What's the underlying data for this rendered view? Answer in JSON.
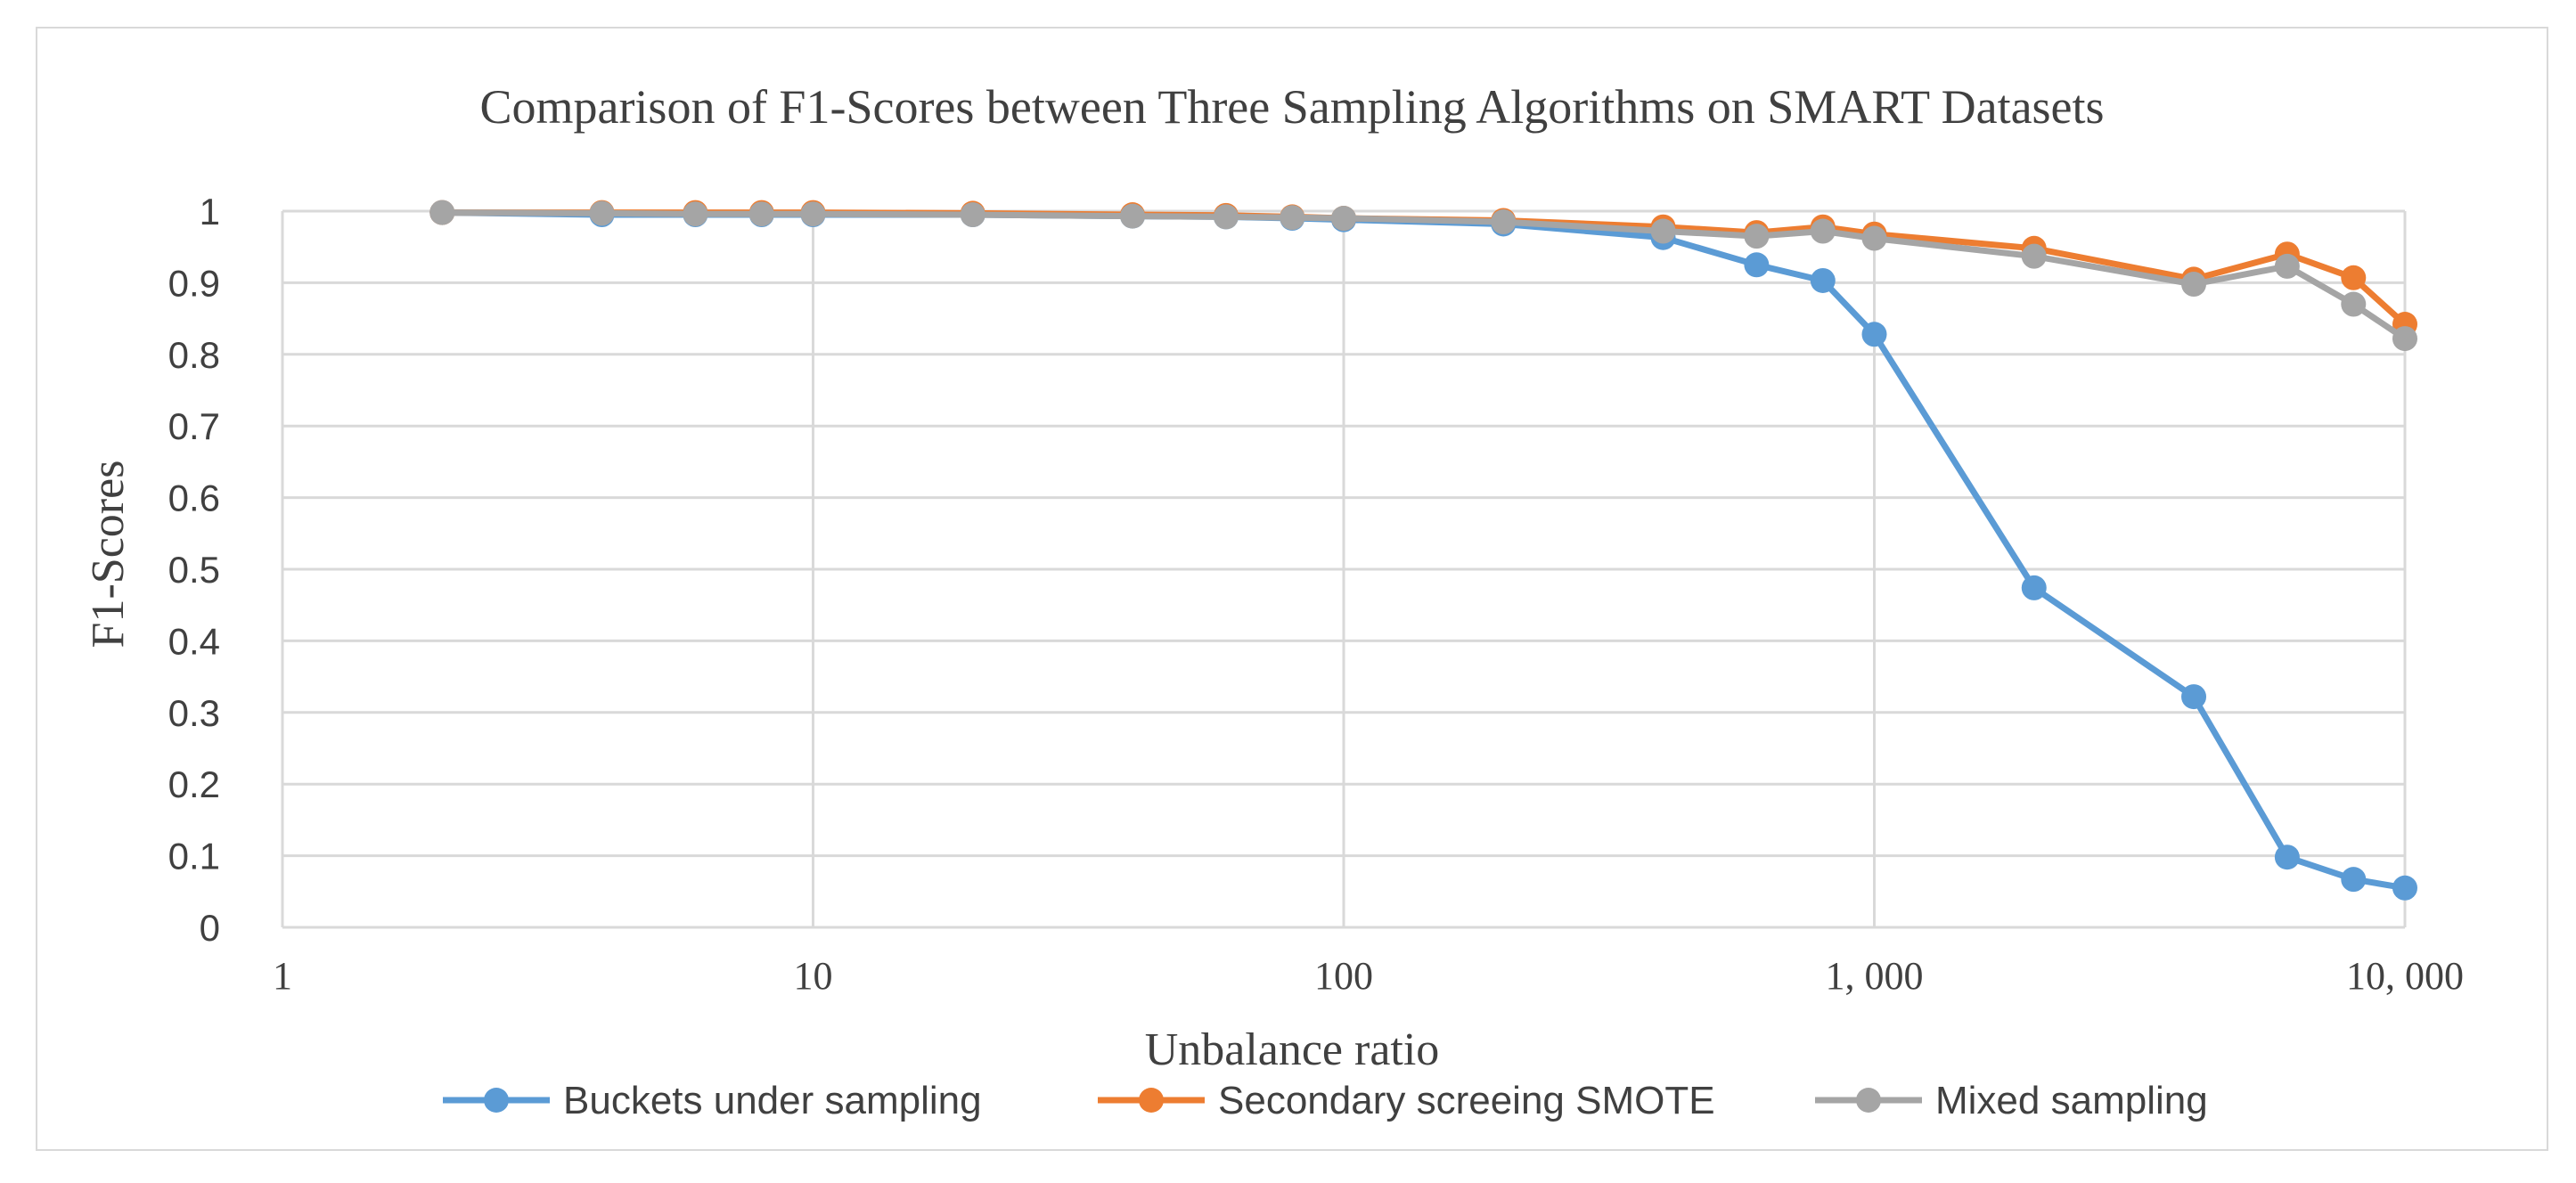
{
  "chart_data": {
    "type": "line",
    "title": "Comparison of F1-Scores between Three Sampling Algorithms on SMART Datasets",
    "xlabel": "Unbalance ratio",
    "ylabel": "F1-Scores",
    "x_scale": "log",
    "xlim": [
      1,
      10000
    ],
    "ylim": [
      0,
      1
    ],
    "grid": true,
    "legend_position": "bottom",
    "x_ticks": [
      1,
      10,
      100,
      1000,
      10000
    ],
    "x_tick_labels": [
      "1",
      "10",
      "100",
      "1, 000",
      "10, 000"
    ],
    "y_ticks": [
      0,
      0.1,
      0.2,
      0.3,
      0.4,
      0.5,
      0.6,
      0.7,
      0.8,
      0.9,
      1
    ],
    "y_tick_labels": [
      "0",
      "0.1",
      "0.2",
      "0.3",
      "0.4",
      "0.5",
      "0.6",
      "0.7",
      "0.8",
      "0.9",
      "1"
    ],
    "series": [
      {
        "name": "Buckets under sampling",
        "color": "#5b9bd5",
        "x": [
          2,
          4,
          6,
          8,
          10,
          20,
          40,
          60,
          80,
          100,
          200,
          400,
          600,
          800,
          1000,
          2000,
          4000,
          6000,
          8000,
          10000
        ],
        "y": [
          0.998,
          0.995,
          0.995,
          0.995,
          0.995,
          0.995,
          0.993,
          0.992,
          0.99,
          0.988,
          0.982,
          0.963,
          0.925,
          0.903,
          0.828,
          0.474,
          0.322,
          0.098,
          0.067,
          0.055
        ]
      },
      {
        "name": "Secondary screeing SMOTE",
        "color": "#ed7d31",
        "x": [
          2,
          4,
          6,
          8,
          10,
          20,
          40,
          60,
          80,
          100,
          200,
          400,
          600,
          800,
          1000,
          2000,
          4000,
          6000,
          8000,
          10000
        ],
        "y": [
          0.998,
          0.998,
          0.998,
          0.998,
          0.998,
          0.997,
          0.995,
          0.994,
          0.992,
          0.99,
          0.987,
          0.978,
          0.97,
          0.978,
          0.968,
          0.948,
          0.905,
          0.94,
          0.907,
          0.842
        ]
      },
      {
        "name": "Mixed sampling",
        "color": "#a5a5a5",
        "x": [
          2,
          4,
          6,
          8,
          10,
          20,
          40,
          60,
          80,
          100,
          200,
          400,
          600,
          800,
          1000,
          2000,
          4000,
          6000,
          8000,
          10000
        ],
        "y": [
          0.998,
          0.997,
          0.996,
          0.996,
          0.996,
          0.995,
          0.993,
          0.992,
          0.991,
          0.99,
          0.985,
          0.972,
          0.965,
          0.972,
          0.962,
          0.937,
          0.898,
          0.923,
          0.87,
          0.822
        ]
      }
    ]
  }
}
